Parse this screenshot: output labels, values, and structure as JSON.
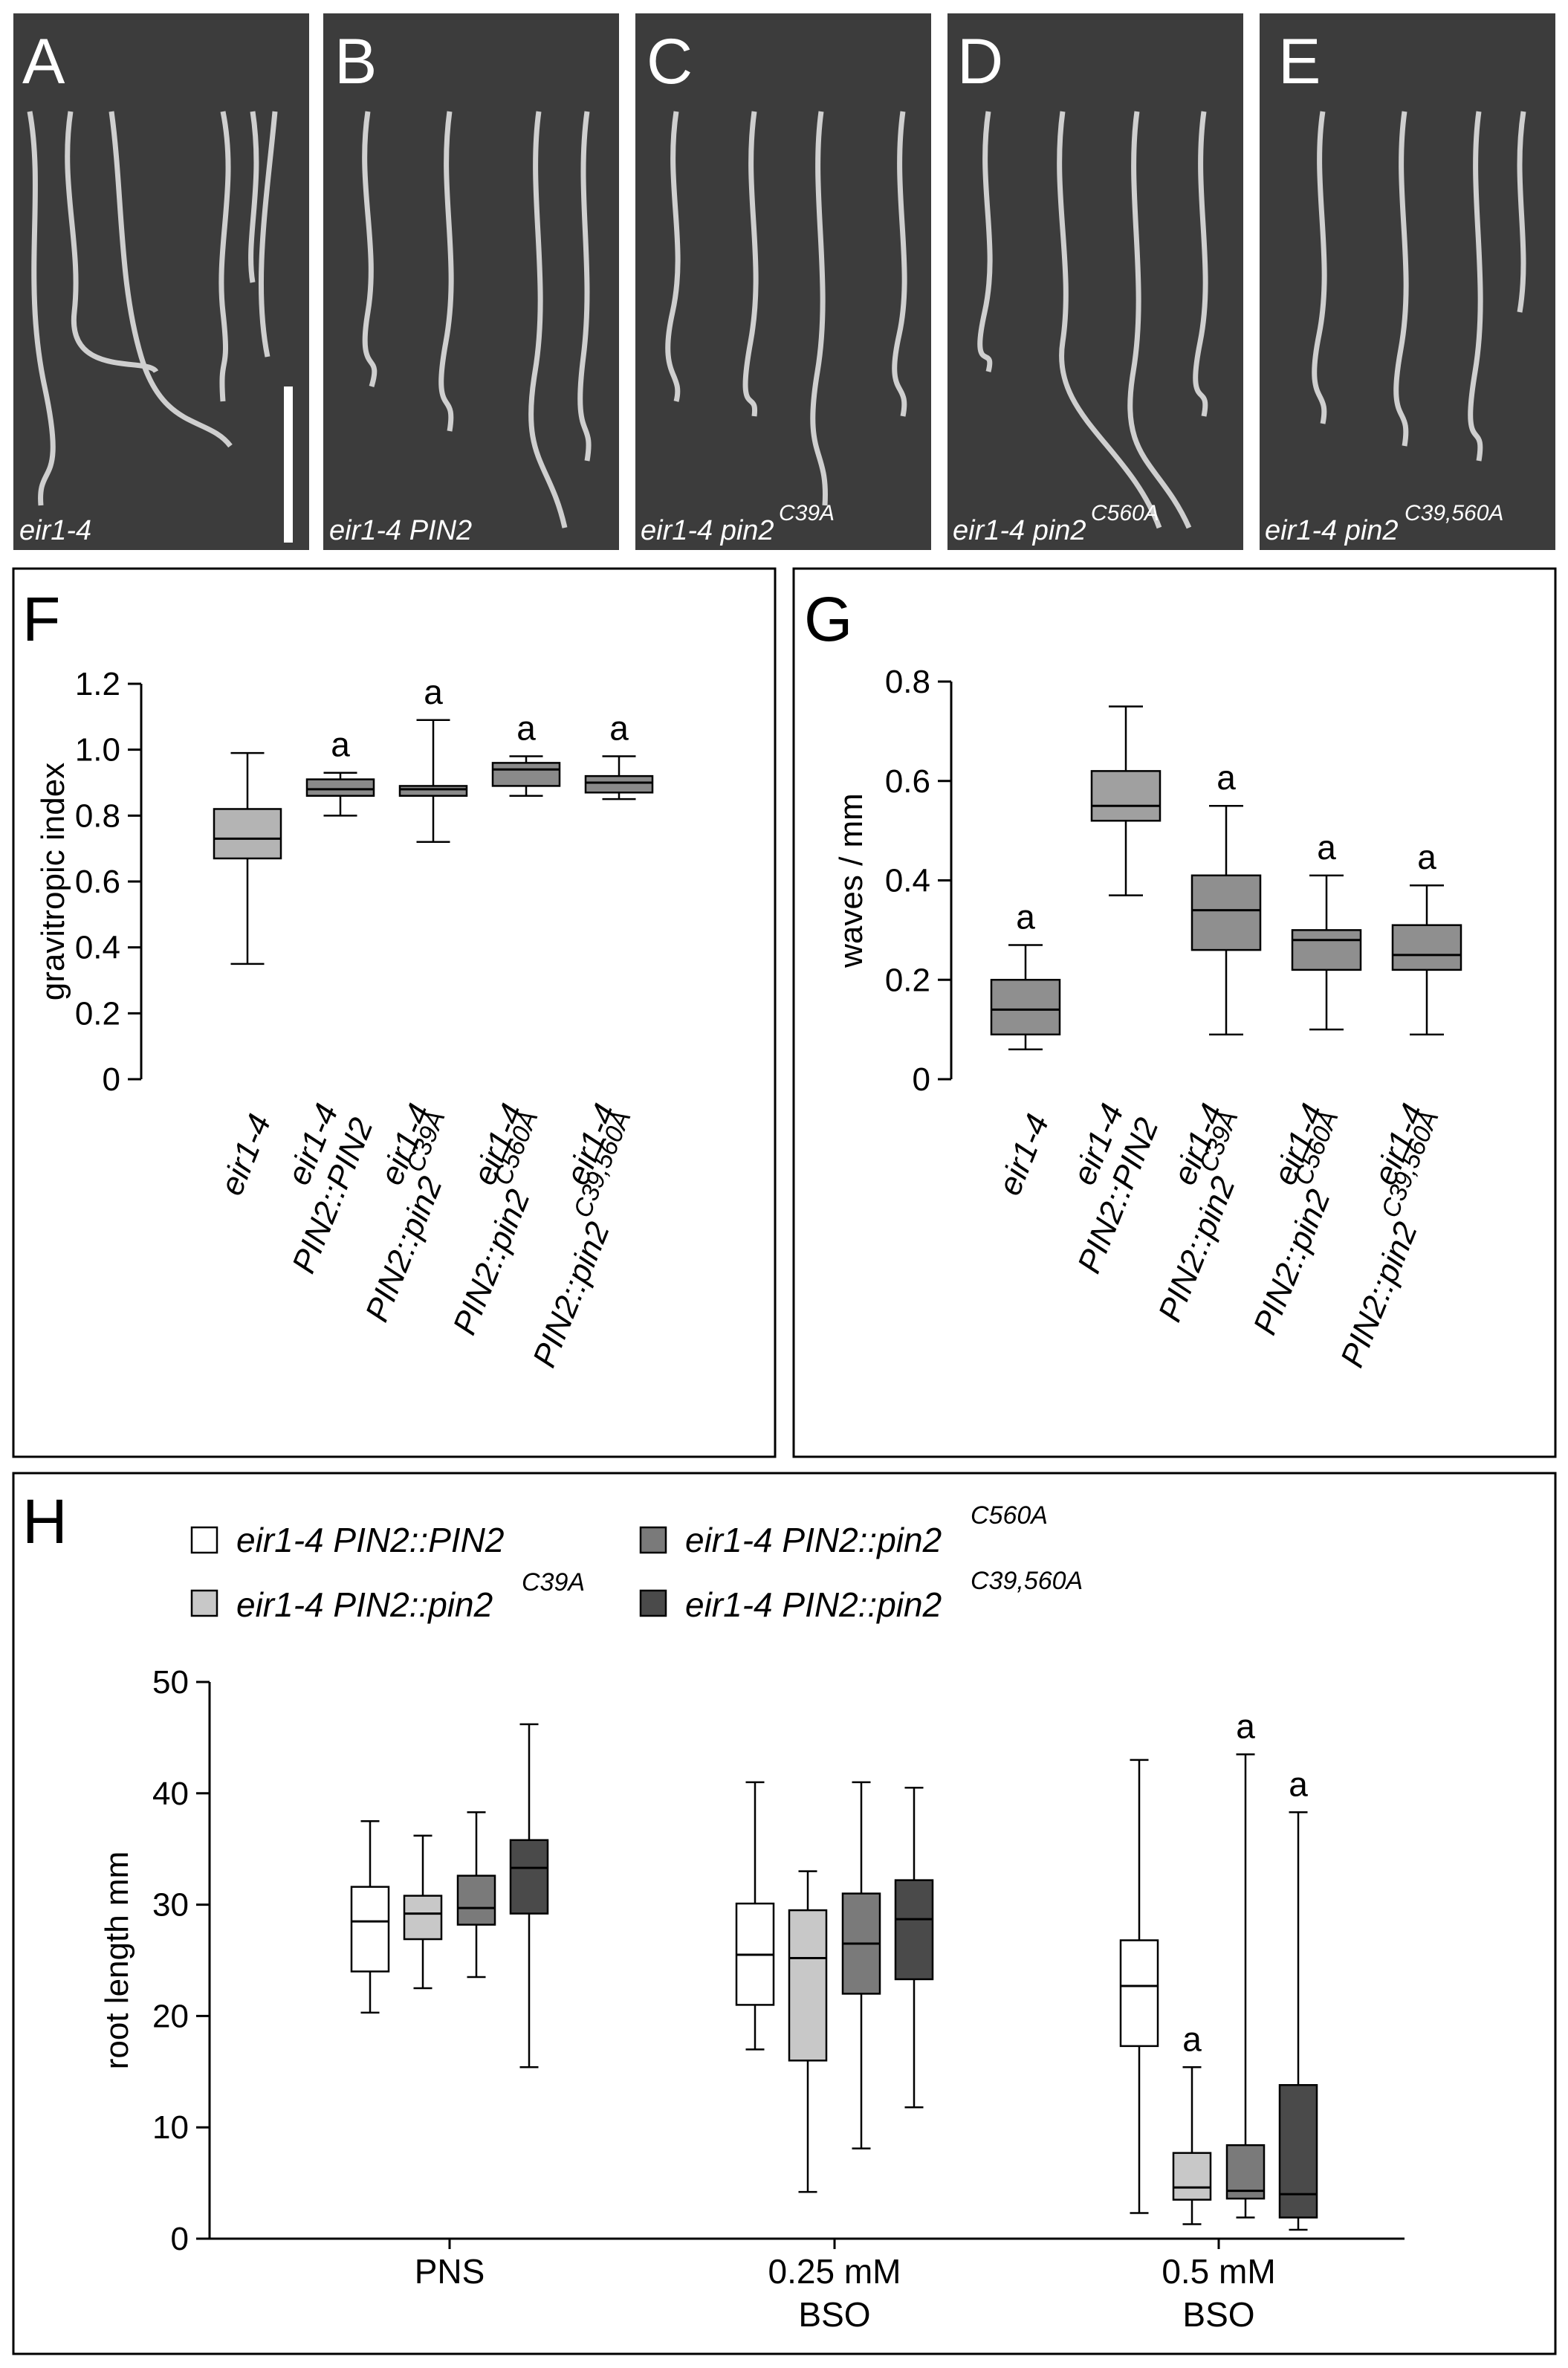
{
  "panels": {
    "A": {
      "letter": "A",
      "genotype": "eir1-4",
      "sup": ""
    },
    "B": {
      "letter": "B",
      "genotype": "eir1-4 PIN2",
      "sup": ""
    },
    "C": {
      "letter": "C",
      "genotype": "eir1-4 pin2",
      "sup": "C39A"
    },
    "D": {
      "letter": "D",
      "genotype": "eir1-4 pin2",
      "sup": "C560A"
    },
    "E": {
      "letter": "E",
      "genotype": "eir1-4 pin2",
      "sup": "C39,560A"
    }
  },
  "colors": {
    "photo_bg": "#3c3c3c",
    "white_box": "#ffffff",
    "light_box": "#c8c8c8",
    "mid_box": "#7a7a7a",
    "dark_box": "#4a4a4a",
    "grayA": "#b4b4b4",
    "grayB": "#8a8a8a",
    "grayC": "#8f8f8f",
    "grayD": "#a0a0a0"
  },
  "chart_data": [
    {
      "panel": "F",
      "type": "box",
      "ylabel": "gravitropic index",
      "ylim": [
        0,
        1.2
      ],
      "yticks": [
        "0",
        "0.2",
        "0.4",
        "0.6",
        "0.8",
        "1.0",
        "1.2"
      ],
      "categories": [
        {
          "line1": "eir1-4",
          "line2": "",
          "sup": ""
        },
        {
          "line1": "eir1-4",
          "line2": "PIN2::PIN2",
          "sup": ""
        },
        {
          "line1": "eir1-4",
          "line2": "PIN2::pin2",
          "sup": "C39A"
        },
        {
          "line1": "eir1-4",
          "line2": "PIN2::pin2",
          "sup": "C560A"
        },
        {
          "line1": "eir1-4",
          "line2": "PIN2::pin2",
          "sup": "C39,560A"
        }
      ],
      "boxes": [
        {
          "min": 0.35,
          "q1": 0.67,
          "median": 0.73,
          "q3": 0.82,
          "max": 0.99,
          "sig": "",
          "fill": "grayA"
        },
        {
          "min": 0.8,
          "q1": 0.86,
          "median": 0.88,
          "q3": 0.91,
          "max": 0.93,
          "sig": "a",
          "fill": "grayB"
        },
        {
          "min": 0.72,
          "q1": 0.86,
          "median": 0.88,
          "q3": 0.89,
          "max": 1.09,
          "sig": "a",
          "fill": "grayB"
        },
        {
          "min": 0.86,
          "q1": 0.89,
          "median": 0.94,
          "q3": 0.96,
          "max": 0.98,
          "sig": "a",
          "fill": "grayB"
        },
        {
          "min": 0.85,
          "q1": 0.87,
          "median": 0.9,
          "q3": 0.92,
          "max": 0.98,
          "sig": "a",
          "fill": "grayB"
        }
      ]
    },
    {
      "panel": "G",
      "type": "box",
      "ylabel": "waves / mm",
      "ylim": [
        0,
        0.8
      ],
      "yticks": [
        "0",
        "0.2",
        "0.4",
        "0.6",
        "0.8"
      ],
      "categories": [
        {
          "line1": "eir1-4",
          "line2": "",
          "sup": ""
        },
        {
          "line1": "eir1-4",
          "line2": "PIN2::PIN2",
          "sup": ""
        },
        {
          "line1": "eir1-4",
          "line2": "PIN2::pin2",
          "sup": "C39A"
        },
        {
          "line1": "eir1-4",
          "line2": "PIN2::pin2",
          "sup": "C560A"
        },
        {
          "line1": "eir1-4",
          "line2": "PIN2::pin2",
          "sup": "C39,560A"
        }
      ],
      "boxes": [
        {
          "min": 0.06,
          "q1": 0.09,
          "median": 0.14,
          "q3": 0.2,
          "max": 0.27,
          "sig": "a",
          "fill": "grayC"
        },
        {
          "min": 0.37,
          "q1": 0.52,
          "median": 0.55,
          "q3": 0.62,
          "max": 0.75,
          "sig": "",
          "fill": "grayD"
        },
        {
          "min": 0.09,
          "q1": 0.26,
          "median": 0.34,
          "q3": 0.41,
          "max": 0.55,
          "sig": "a",
          "fill": "grayC"
        },
        {
          "min": 0.1,
          "q1": 0.22,
          "median": 0.28,
          "q3": 0.3,
          "max": 0.41,
          "sig": "a",
          "fill": "grayC"
        },
        {
          "min": 0.09,
          "q1": 0.22,
          "median": 0.25,
          "q3": 0.31,
          "max": 0.39,
          "sig": "a",
          "fill": "grayC"
        }
      ]
    },
    {
      "panel": "H",
      "type": "box",
      "ylabel": "root length mm",
      "ylim": [
        0,
        50
      ],
      "yticks": [
        "0",
        "10",
        "20",
        "30",
        "40",
        "50"
      ],
      "groups": [
        {
          "line1": "PNS",
          "line2": ""
        },
        {
          "line1": "0.25 mM",
          "line2": "BSO"
        },
        {
          "line1": "0.5 mM",
          "line2": "BSO"
        }
      ],
      "legend": [
        {
          "label": "eir1-4 PIN2::PIN2",
          "sup": "",
          "fill": "white_box"
        },
        {
          "label": "eir1-4 PIN2::pin2",
          "sup": "C39A",
          "fill": "light_box"
        },
        {
          "label": "eir1-4 PIN2::pin2",
          "sup": "C560A",
          "fill": "mid_box"
        },
        {
          "label": "eir1-4 PIN2::pin2",
          "sup": "C39,560A",
          "fill": "dark_box"
        }
      ],
      "series": [
        {
          "name": "eir1-4 PIN2::PIN2",
          "fill": "white_box",
          "boxes": [
            {
              "min": 20.3,
              "q1": 24.0,
              "median": 28.5,
              "q3": 31.6,
              "max": 37.5,
              "sig": ""
            },
            {
              "min": 17.0,
              "q1": 21.0,
              "median": 25.5,
              "q3": 30.1,
              "max": 41.0,
              "sig": ""
            },
            {
              "min": 2.3,
              "q1": 17.3,
              "median": 22.7,
              "q3": 26.8,
              "max": 43.0,
              "sig": ""
            }
          ]
        },
        {
          "name": "eir1-4 PIN2::pin2 C39A",
          "fill": "light_box",
          "boxes": [
            {
              "min": 22.5,
              "q1": 26.9,
              "median": 29.2,
              "q3": 30.8,
              "max": 36.2,
              "sig": ""
            },
            {
              "min": 4.2,
              "q1": 16.0,
              "median": 25.2,
              "q3": 29.5,
              "max": 33.0,
              "sig": ""
            },
            {
              "min": 1.3,
              "q1": 3.5,
              "median": 4.6,
              "q3": 7.7,
              "max": 15.4,
              "sig": "a"
            }
          ]
        },
        {
          "name": "eir1-4 PIN2::pin2 C560A",
          "fill": "mid_box",
          "boxes": [
            {
              "min": 23.5,
              "q1": 28.2,
              "median": 29.7,
              "q3": 32.6,
              "max": 38.3,
              "sig": ""
            },
            {
              "min": 8.1,
              "q1": 22.0,
              "median": 26.5,
              "q3": 31.0,
              "max": 41.0,
              "sig": ""
            },
            {
              "min": 1.9,
              "q1": 3.6,
              "median": 4.3,
              "q3": 8.4,
              "max": 43.5,
              "sig": "a"
            }
          ]
        },
        {
          "name": "eir1-4 PIN2::pin2 C39,560A",
          "fill": "dark_box",
          "boxes": [
            {
              "min": 15.4,
              "q1": 29.2,
              "median": 33.3,
              "q3": 35.8,
              "max": 46.2,
              "sig": ""
            },
            {
              "min": 11.8,
              "q1": 23.3,
              "median": 28.7,
              "q3": 32.2,
              "max": 40.5,
              "sig": ""
            },
            {
              "min": 0.8,
              "q1": 1.9,
              "median": 4.0,
              "q3": 13.8,
              "max": 38.3,
              "sig": "a"
            }
          ]
        }
      ]
    }
  ]
}
